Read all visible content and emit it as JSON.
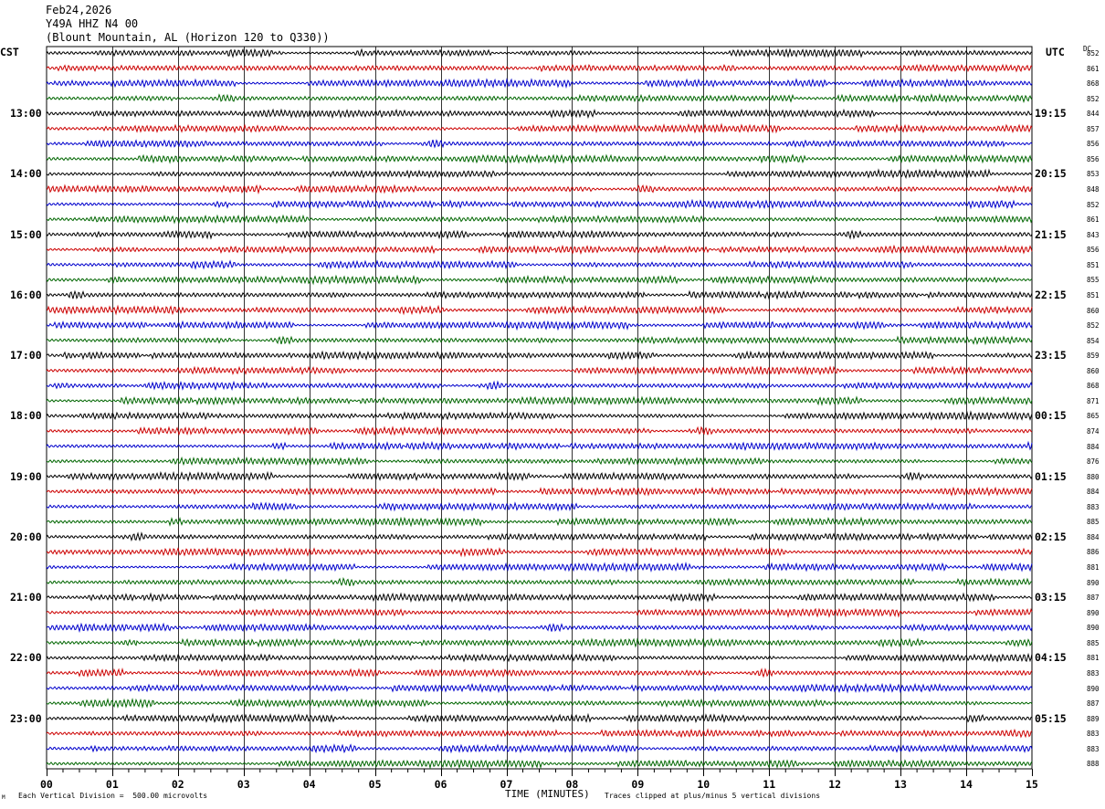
{
  "header": {
    "date": "Feb24,2026",
    "station": "Y49A HHZ N4 00",
    "location": "(Blount Mountain, AL (Horizon 120 to Q330))"
  },
  "labels": {
    "left_tz": "CST",
    "right_tz": "UTC",
    "dc_header": "DC",
    "xlabel": "TIME (MINUTES)",
    "scale_note": "Each Vertical Division =  500.00 microvolts",
    "clip_note": "Traces clipped at plus/minus 5 vertical divisions",
    "corner_mark": "M"
  },
  "colors": [
    "#000000",
    "#cc0000",
    "#0000cc",
    "#006600"
  ],
  "chart_data": {
    "type": "line",
    "title": "Y49A HHZ N4 00",
    "xlabel": "TIME (MINUTES)",
    "xlim": [
      0,
      15
    ],
    "x_ticks": [
      "00",
      "01",
      "02",
      "03",
      "04",
      "05",
      "06",
      "07",
      "08",
      "09",
      "10",
      "11",
      "12",
      "13",
      "14",
      "15"
    ],
    "traces_per_hour": 4,
    "trace_minutes": 15,
    "left_hour_labels": [
      "13:00",
      "14:00",
      "15:00",
      "16:00",
      "17:00",
      "18:00",
      "19:00",
      "20:00",
      "21:00",
      "22:00",
      "23:00"
    ],
    "right_hour_labels": [
      "19:15",
      "20:15",
      "21:15",
      "22:15",
      "23:15",
      "00:15",
      "01:15",
      "02:15",
      "03:15",
      "04:15",
      "05:15"
    ],
    "dc_offsets": [
      852,
      861,
      868,
      852,
      844,
      857,
      856,
      856,
      853,
      848,
      852,
      861,
      843,
      856,
      851,
      855,
      851,
      860,
      852,
      854,
      859,
      860,
      868,
      871,
      865,
      874,
      884,
      876,
      880,
      884,
      883,
      885,
      884,
      886,
      881,
      890,
      887,
      890,
      890,
      885,
      881,
      883,
      890,
      887,
      889,
      883,
      883,
      888
    ]
  }
}
